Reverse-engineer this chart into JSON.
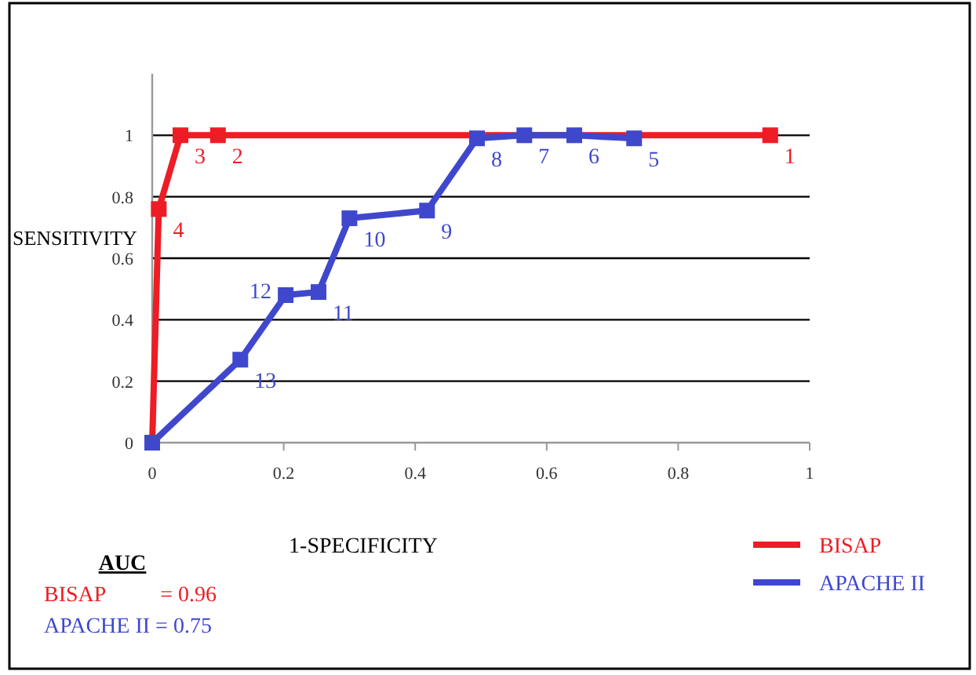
{
  "chart_data": {
    "type": "line",
    "xlabel": "1-SPECIFICITY",
    "ylabel": "SENSITIVITY",
    "xlim": [
      0,
      1
    ],
    "xticks": [
      0,
      0.2,
      0.4,
      0.6,
      0.8,
      1
    ],
    "ylim": [
      0,
      1.2
    ],
    "yticks": [
      0,
      0.2,
      0.4,
      0.6,
      0.8,
      1
    ],
    "grid": "y",
    "legend": "bottom right",
    "marker": "square",
    "line_style": "solid",
    "series": [
      {
        "name": "BISAP",
        "color": "#ee1c24",
        "x": [
          0,
          0.01,
          0.043,
          0.1,
          0.94
        ],
        "values": [
          0,
          0.76,
          1,
          1,
          1
        ]
      },
      {
        "name": "APACHE II",
        "color": "#3f48cc",
        "x": [
          0,
          0.134,
          0.203,
          0.253,
          0.3,
          0.418,
          0.494,
          0.566,
          0.642,
          0.733
        ],
        "values": [
          0,
          0.27,
          0.48,
          0.49,
          0.73,
          0.755,
          0.99,
          1,
          1,
          0.99
        ]
      }
    ],
    "annotations": [
      {
        "text": "1",
        "x": 0.94,
        "y": 1
      },
      {
        "text": "2",
        "x": 0.1,
        "y": 1
      },
      {
        "text": "3",
        "x": 0.043,
        "y": 1
      },
      {
        "text": "4",
        "x": 0.01,
        "y": 0.76
      },
      {
        "text": "5",
        "x": 0.733,
        "y": 0.99
      },
      {
        "text": "6",
        "x": 0.642,
        "y": 1
      },
      {
        "text": "7",
        "x": 0.566,
        "y": 1
      },
      {
        "text": "8",
        "x": 0.494,
        "y": 0.99
      },
      {
        "text": "9",
        "x": 0.418,
        "y": 0.755
      },
      {
        "text": "10",
        "x": 0.3,
        "y": 0.73
      },
      {
        "text": "11",
        "x": 0.253,
        "y": 0.49
      },
      {
        "text": "12",
        "x": 0.203,
        "y": 0.48
      },
      {
        "text": "13",
        "x": 0.134,
        "y": 0.27
      },
      "AUC",
      "BISAP          = 0.96",
      "APACHE II = 0.75"
    ]
  }
}
